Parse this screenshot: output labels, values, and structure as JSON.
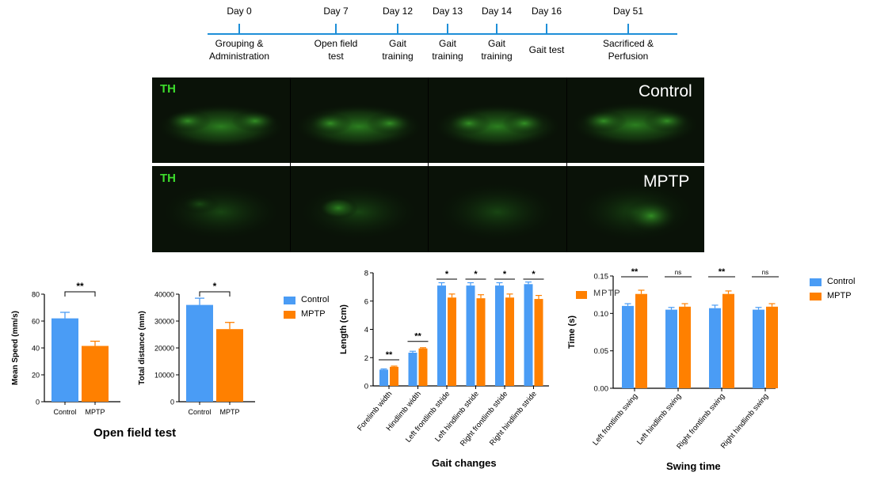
{
  "timeline": {
    "events": [
      {
        "day": "Day 0",
        "label1": "Grouping &",
        "label2": "Administration"
      },
      {
        "day": "Day 7",
        "label1": "Open field",
        "label2": "test"
      },
      {
        "day": "Day 12",
        "label1": "Gait",
        "label2": "training"
      },
      {
        "day": "Day 13",
        "label1": "Gait",
        "label2": "training"
      },
      {
        "day": "Day 14",
        "label1": "Gait",
        "label2": "training"
      },
      {
        "day": "Day 16",
        "label1": "Gait test",
        "label2": ""
      },
      {
        "day": "Day 51",
        "label1": "Sacrificed &",
        "label2": "Perfusion"
      }
    ]
  },
  "microscopy": {
    "stain_label": "TH",
    "rows": [
      {
        "group": "Control"
      },
      {
        "group": "MPTP"
      }
    ]
  },
  "colors": {
    "control": "#4a9cf5",
    "mptp": "#ff8000",
    "timeline": "#1e8fd8",
    "stain": "#3ddc2c"
  },
  "legend": {
    "control": "Control",
    "mptp": "MPTP"
  },
  "open_field_title": "Open field test",
  "gait_title": "Gait changes",
  "swing_title": "Swing time",
  "chart_data": [
    {
      "type": "bar",
      "id": "mean_speed",
      "categories": [
        "Control",
        "MPTP"
      ],
      "values": [
        62,
        41.5
      ],
      "errors": [
        4.5,
        3.5
      ],
      "ylabel": "Mean Speed (mm/s)",
      "ylim": [
        0,
        80
      ],
      "yticks": [
        "0",
        "20",
        "40",
        "60",
        "80"
      ],
      "sig": [
        {
          "label": "**"
        }
      ]
    },
    {
      "type": "bar",
      "id": "total_distance",
      "categories": [
        "Control",
        "MPTP"
      ],
      "values": [
        36000,
        27000
      ],
      "errors": [
        2500,
        2500
      ],
      "ylabel": "Total distance (mm)",
      "ylim": [
        0,
        40000
      ],
      "yticks": [
        "0",
        "10000",
        "20000",
        "30000",
        "40000"
      ],
      "sig": [
        {
          "label": "*"
        }
      ]
    },
    {
      "type": "bar",
      "id": "gait",
      "categories": [
        "Forelimb width",
        "Hindlimb width",
        "Left frontlimb stride",
        "Left hindlimb stride",
        "Right frontlimb stride",
        "Right hindlimb stride"
      ],
      "series": [
        {
          "name": "Control",
          "values": [
            1.15,
            2.35,
            7.1,
            7.1,
            7.1,
            7.2
          ],
          "errors": [
            0.05,
            0.1,
            0.2,
            0.2,
            0.2,
            0.15
          ]
        },
        {
          "name": "MPTP",
          "values": [
            1.35,
            2.65,
            6.25,
            6.2,
            6.25,
            6.15
          ],
          "errors": [
            0.05,
            0.05,
            0.25,
            0.25,
            0.25,
            0.25
          ]
        }
      ],
      "ylabel": "Length (cm)",
      "ylim": [
        0,
        8
      ],
      "yticks": [
        "0",
        "2",
        "4",
        "6",
        "8"
      ],
      "sig": [
        "**",
        "**",
        "*",
        "*",
        "*",
        "*"
      ]
    },
    {
      "type": "bar",
      "id": "swing",
      "categories": [
        "Left frontlimb swing",
        "Left hindlimb swing",
        "Right frontlimb swing",
        "Right hindlimb swing"
      ],
      "series": [
        {
          "name": "Control",
          "values": [
            0.11,
            0.105,
            0.107,
            0.105
          ],
          "errors": [
            0.003,
            0.003,
            0.004,
            0.003
          ]
        },
        {
          "name": "MPTP",
          "values": [
            0.126,
            0.109,
            0.126,
            0.109
          ],
          "errors": [
            0.005,
            0.004,
            0.004,
            0.004
          ]
        }
      ],
      "ylabel": "Time (s)",
      "ylim": [
        0,
        0.15
      ],
      "yticks": [
        "0.00",
        "0.05",
        "0.10",
        "0.15"
      ],
      "sig": [
        "**",
        "ns",
        "**",
        "ns"
      ]
    }
  ]
}
